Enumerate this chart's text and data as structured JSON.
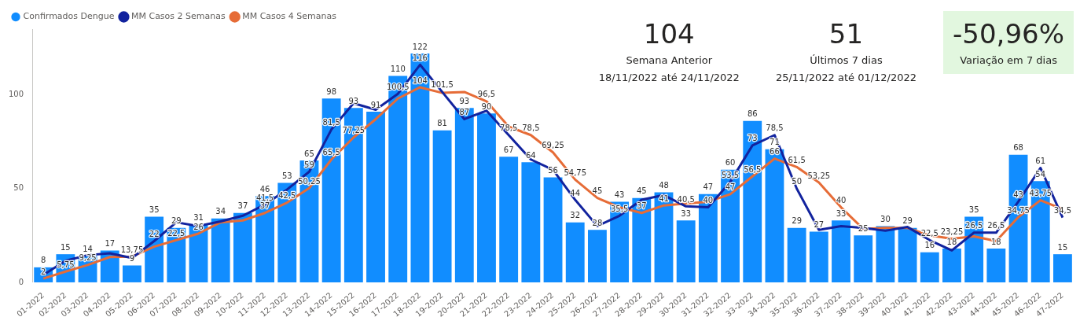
{
  "chart_data": {
    "type": "bar",
    "categories": [
      "01-2022",
      "02-2022",
      "03-2022",
      "04-2022",
      "05-2022",
      "06-2022",
      "07-2022",
      "08-2022",
      "09-2022",
      "10-2022",
      "11-2022",
      "12-2022",
      "13-2022",
      "14-2022",
      "15-2022",
      "16-2022",
      "17-2022",
      "18-2022",
      "19-2022",
      "20-2022",
      "21-2022",
      "22-2022",
      "23-2022",
      "24-2022",
      "25-2022",
      "26-2022",
      "27-2022",
      "28-2022",
      "29-2022",
      "30-2022",
      "31-2022",
      "32-2022",
      "33-2022",
      "34-2022",
      "35-2022",
      "36-2022",
      "37-2022",
      "38-2022",
      "39-2022",
      "40-2022",
      "41-2022",
      "42-2022",
      "43-2022",
      "44-2022",
      "45-2022",
      "46-2022",
      "47-2022"
    ],
    "series": [
      {
        "name": "Confirmados Dengue",
        "color": "#118dff",
        "values": [
          8,
          15,
          14,
          17,
          9,
          35,
          29,
          31,
          34,
          37,
          46,
          53,
          65,
          98,
          93,
          91,
          110,
          122,
          81,
          93,
          90,
          67,
          64,
          56,
          32,
          28,
          43,
          45,
          48,
          33,
          47,
          60,
          86,
          71,
          29,
          27,
          33,
          25,
          30,
          29,
          16,
          18,
          35,
          18,
          68,
          54,
          15
        ],
        "value_labels": [
          "8",
          "15",
          "14",
          "17",
          "9",
          "35",
          "29",
          "31",
          "34",
          "37",
          "46",
          "53",
          "65",
          "98",
          "93",
          "91",
          "110",
          "122",
          "81",
          "93",
          "90",
          "67",
          "64",
          "56",
          "32",
          "28",
          "43",
          "45",
          "48",
          "33",
          "47",
          "60",
          "86",
          "71",
          "29",
          "27",
          "33",
          "25",
          "30",
          "29",
          "16",
          "18",
          "35",
          "18",
          "68",
          "54",
          "15"
        ]
      },
      {
        "name": "MM Casos 2 Semanas",
        "type": "line",
        "color": "#12239e",
        "values": [
          4,
          11.5,
          14.5,
          15.5,
          13,
          22,
          32,
          30,
          32.5,
          35.5,
          41.5,
          49.5,
          59,
          81.5,
          95.5,
          92,
          100.5,
          116,
          101.5,
          87,
          91.5,
          78.5,
          65.5,
          60,
          44,
          30,
          35.5,
          44,
          46.5,
          40.5,
          40,
          53.5,
          73,
          78.5,
          50,
          28,
          30,
          29,
          27.5,
          29.5,
          22.5,
          17,
          26.5,
          26.5,
          43,
          61,
          34.5
        ],
        "value_labels": [
          null,
          null,
          null,
          null,
          null,
          "22",
          null,
          null,
          null,
          null,
          "41,5",
          null,
          "59",
          "81,5",
          null,
          null,
          "100,5",
          "116",
          "101,5",
          "87",
          null,
          "78,5",
          null,
          null,
          "44",
          null,
          "35,5",
          null,
          null,
          "40,5",
          "40",
          "53,5",
          "73",
          "78,5",
          "50",
          null,
          null,
          null,
          null,
          null,
          "22,5",
          null,
          "26,5",
          "26,5",
          "43",
          "61",
          "34,5"
        ]
      },
      {
        "name": "MM Casos 4 Semanas",
        "type": "line",
        "color": "#e66c37",
        "values": [
          2,
          5.75,
          9.25,
          13.5,
          13.75,
          19,
          22.5,
          26,
          32,
          33,
          37,
          42.5,
          50.25,
          65.5,
          77.25,
          87,
          98,
          104,
          101,
          101.5,
          96.5,
          83,
          78.5,
          69.25,
          54.75,
          45,
          40,
          37,
          41,
          42,
          43,
          47,
          56.5,
          66,
          61.5,
          53.25,
          40,
          28.5,
          29,
          29,
          25,
          23.25,
          24.5,
          22,
          34.75,
          43.75,
          39
        ],
        "value_labels": [
          "2",
          "5,75",
          "9,25",
          null,
          "13,75",
          null,
          "22,5",
          "26",
          null,
          null,
          "37",
          "42,5",
          "50,25",
          "65,5",
          "77,25",
          null,
          null,
          "104",
          null,
          null,
          "96,5",
          null,
          "78,5",
          "69,25",
          "54,75",
          "45",
          null,
          "37",
          "41",
          null,
          null,
          "47",
          "56,5",
          "66",
          "61,5",
          "53,25",
          "40",
          null,
          null,
          null,
          null,
          "23,25",
          null,
          null,
          "34,75",
          "43,75",
          null
        ]
      }
    ],
    "ylim": [
      0,
      135
    ],
    "yticks": [
      0,
      50,
      100
    ],
    "grid": false,
    "legend": "top left",
    "annotations": [
      "104",
      "Semana Anterior",
      "18/11/2022 até 24/11/2022",
      "51",
      "Últimos 7 dias",
      "25/11/2022 até 01/12/2022",
      "-50,96%",
      "Variação em 7 dias"
    ]
  }
}
